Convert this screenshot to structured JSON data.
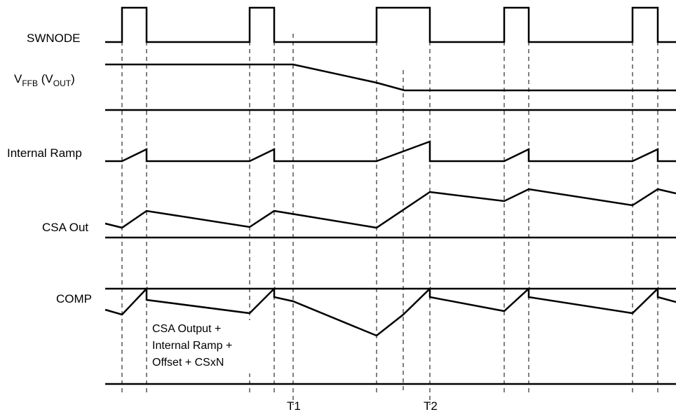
{
  "labels": {
    "swnode": "SWNODE",
    "vffb_main": "V",
    "vffb_sub": "FFB",
    "vffb_paren_open": " (V",
    "vffb_sub2": "OUT",
    "vffb_paren_close": ")",
    "ramp": "Internal Ramp",
    "csa": "CSA Out",
    "comp": "COMP"
  },
  "annotation": {
    "line1": "CSA Output +",
    "line2": "Internal Ramp +",
    "line3": "Offset + CSxN"
  },
  "markers": {
    "t1": "T1",
    "t2": "T2"
  }
}
